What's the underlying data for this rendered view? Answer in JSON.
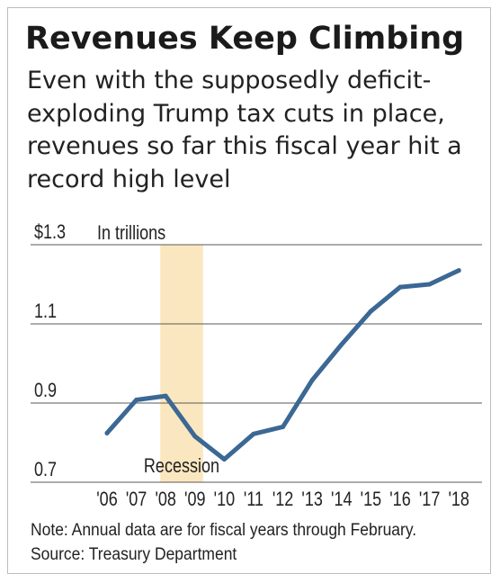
{
  "chart_data": {
    "type": "line",
    "title": "Revenues Keep Climbing",
    "subtitle": "Even with the supposedly deficit-exploding Trump tax cuts in place, revenues so far this fiscal year hit a record high level",
    "unit_label": "In trillions",
    "categories": [
      "'06",
      "'07",
      "'08",
      "'09",
      "'10",
      "'11",
      "'12",
      "'13",
      "'14",
      "'15",
      "'16",
      "'17",
      "'18"
    ],
    "series": [
      {
        "values": [
          0.824,
          0.908,
          0.918,
          0.816,
          0.758,
          0.822,
          0.84,
          0.958,
          1.048,
          1.132,
          1.193,
          1.2,
          1.235
        ]
      }
    ],
    "ylim": [
      0.7,
      1.3
    ],
    "y_ticks": [
      {
        "value": 0.7,
        "label": "0.7"
      },
      {
        "value": 0.9,
        "label": "0.9"
      },
      {
        "value": 1.1,
        "label": "1.1"
      },
      {
        "value": 1.3,
        "label": "$1.3"
      }
    ],
    "gridlines": true,
    "line_color": "#3b6894",
    "shaded_region": {
      "from": "'08",
      "to": "'09",
      "label": "Recession",
      "color": "#fbe7bf"
    }
  },
  "notes": [
    "Note: Annual data are for fiscal years through February.",
    "Source: Treasury Department"
  ]
}
